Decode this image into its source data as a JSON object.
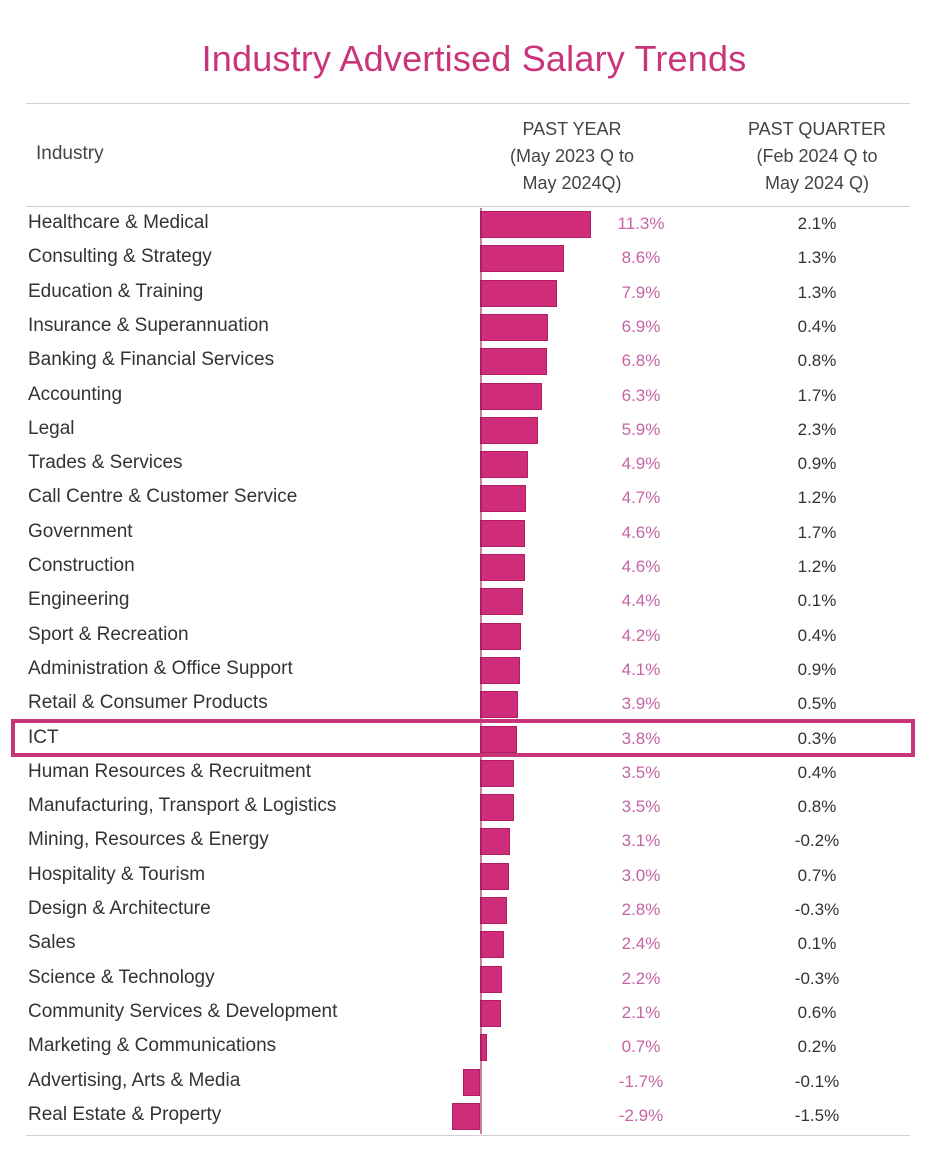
{
  "title": "Industry Advertised Salary Trends",
  "colors": {
    "accent": "#c9347a",
    "bar": "#cf2d7a",
    "highlight_border": "#c8347a",
    "value_text": "#c564a6"
  },
  "header": {
    "industry": "Industry",
    "past_year": [
      "PAST YEAR",
      "(May 2023 Q to",
      "May 2024Q)"
    ],
    "past_quarter": [
      "PAST QUARTER",
      "(Feb 2024 Q to",
      "May 2024 Q)"
    ]
  },
  "highlighted_industry": "ICT",
  "chart_data": {
    "type": "bar",
    "orientation": "horizontal",
    "title": "Industry Advertised Salary Trends",
    "xlabel": "",
    "ylabel": "Industry",
    "series": [
      {
        "name": "PAST YEAR (May 2023 Q to May 2024Q)",
        "values": [
          11.3,
          8.6,
          7.9,
          6.9,
          6.8,
          6.3,
          5.9,
          4.9,
          4.7,
          4.6,
          4.6,
          4.4,
          4.2,
          4.1,
          3.9,
          3.8,
          3.5,
          3.5,
          3.1,
          3.0,
          2.8,
          2.4,
          2.2,
          2.1,
          0.7,
          -1.7,
          -2.9
        ]
      },
      {
        "name": "PAST QUARTER (Feb 2024 Q to May 2024 Q)",
        "values": [
          2.1,
          1.3,
          1.3,
          0.4,
          0.8,
          1.7,
          2.3,
          0.9,
          1.2,
          1.7,
          1.2,
          0.1,
          0.4,
          0.9,
          0.5,
          0.3,
          0.4,
          0.8,
          -0.2,
          0.7,
          -0.3,
          0.1,
          -0.3,
          0.6,
          0.2,
          -0.1,
          -1.5
        ]
      }
    ],
    "categories": [
      "Healthcare & Medical",
      "Consulting & Strategy",
      "Education & Training",
      "Insurance & Superannuation",
      "Banking & Financial Services",
      "Accounting",
      "Legal",
      "Trades & Services",
      "Call Centre & Customer Service",
      "Government",
      "Construction",
      "Engineering",
      "Sport & Recreation",
      "Administration & Office Support",
      "Retail & Consumer Products",
      "ICT",
      "Human Resources & Recruitment",
      "Manufacturing, Transport & Logistics",
      "Mining, Resources & Energy",
      "Hospitality & Tourism",
      "Design & Architecture",
      "Sales",
      "Science & Technology",
      "Community Services & Development",
      "Marketing & Communications",
      "Advertising, Arts & Media",
      "Real Estate & Property"
    ],
    "past_year_labels": [
      "11.3%",
      "8.6%",
      "7.9%",
      "6.9%",
      "6.8%",
      "6.3%",
      "5.9%",
      "4.9%",
      "4.7%",
      "4.6%",
      "4.6%",
      "4.4%",
      "4.2%",
      "4.1%",
      "3.9%",
      "3.8%",
      "3.5%",
      "3.5%",
      "3.1%",
      "3.0%",
      "2.8%",
      "2.4%",
      "2.2%",
      "2.1%",
      "0.7%",
      "-1.7%",
      "-2.9%"
    ],
    "past_quarter_labels": [
      "2.1%",
      "1.3%",
      "1.3%",
      "0.4%",
      "0.8%",
      "1.7%",
      "2.3%",
      "0.9%",
      "1.2%",
      "1.7%",
      "1.2%",
      "0.1%",
      "0.4%",
      "0.9%",
      "0.5%",
      "0.3%",
      "0.4%",
      "0.8%",
      "-0.2%",
      "0.7%",
      "-0.3%",
      "0.1%",
      "-0.3%",
      "0.6%",
      "0.2%",
      "-0.1%",
      "-1.5%"
    ],
    "xlim": [
      -3,
      12
    ]
  }
}
